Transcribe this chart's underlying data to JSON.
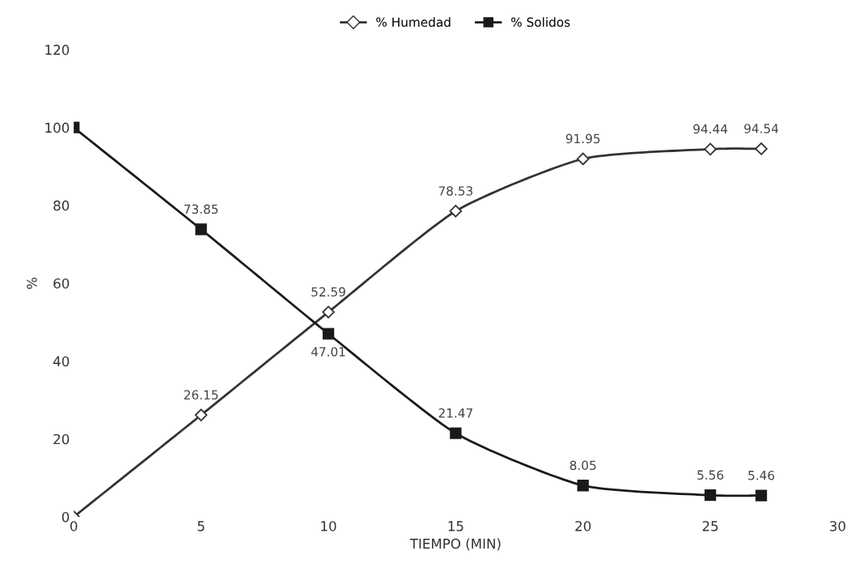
{
  "chart_data": {
    "type": "line",
    "xlabel": "TIEMPO (MIN)",
    "ylabel": "%",
    "x": [
      0,
      5,
      10,
      15,
      20,
      25,
      27
    ],
    "series": [
      {
        "name": "% Humedad",
        "color": "#333333",
        "marker": "diamond",
        "values": [
          0,
          26.15,
          52.59,
          78.53,
          91.95,
          94.44,
          94.54
        ],
        "value_labels": [
          null,
          "26.15",
          "52.59",
          "78.53",
          "91.95",
          "94.44",
          "94.54"
        ]
      },
      {
        "name": "% Solidos",
        "color": "#1a1a1a",
        "marker": "square",
        "values": [
          100,
          73.85,
          47.01,
          21.47,
          8.05,
          5.56,
          5.46
        ],
        "value_labels": [
          null,
          "73.85",
          "47.01",
          "21.47",
          "8.05",
          "5.56",
          "5.46"
        ]
      }
    ],
    "xlim": [
      0,
      30
    ],
    "xticks": [
      0,
      5,
      10,
      15,
      20,
      25,
      30
    ],
    "ylim": [
      0,
      120
    ],
    "yticks": [
      0,
      20,
      40,
      60,
      80,
      100,
      120
    ],
    "grid": false,
    "legend": "top",
    "line_style": "solid"
  }
}
